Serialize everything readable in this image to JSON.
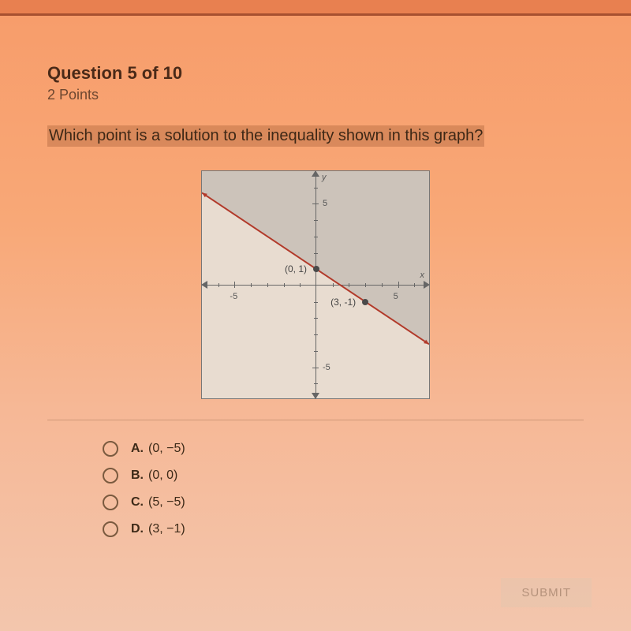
{
  "header": {
    "title": "Question 5 of 10",
    "points": "2 Points"
  },
  "prompt": "Which point is a solution to the inequality shown in this graph?",
  "graph": {
    "type": "inequality-plot",
    "xlim": [
      -7,
      7
    ],
    "ylim": [
      -7,
      7
    ],
    "x_ticks": [
      -5,
      5
    ],
    "y_ticks": [
      -5,
      5
    ],
    "axis_labels": {
      "x": "x",
      "y": "y"
    },
    "line": {
      "p1": [
        0,
        1
      ],
      "p2": [
        3,
        -1
      ],
      "extent": [
        [
          -7,
          5.667
        ],
        [
          7,
          -3.667
        ]
      ],
      "color": "#b23a2a",
      "width": 2
    },
    "shaded_region": "above",
    "shade_color": "rgba(120,120,120,0.25)",
    "points": [
      {
        "coords": [
          0,
          1
        ],
        "label": "(0, 1)",
        "label_side": "left"
      },
      {
        "coords": [
          3,
          -1
        ],
        "label": "(3, -1)",
        "label_side": "left"
      }
    ],
    "background_color": "#e8dcd0",
    "axis_color": "#666666",
    "label_fontsize": 12
  },
  "options": [
    {
      "letter": "A.",
      "text": "(0, −5)"
    },
    {
      "letter": "B.",
      "text": "(0, 0)"
    },
    {
      "letter": "C.",
      "text": "(5, −5)"
    },
    {
      "letter": "D.",
      "text": "(3, −1)"
    }
  ],
  "submit_label": "SUBMIT"
}
